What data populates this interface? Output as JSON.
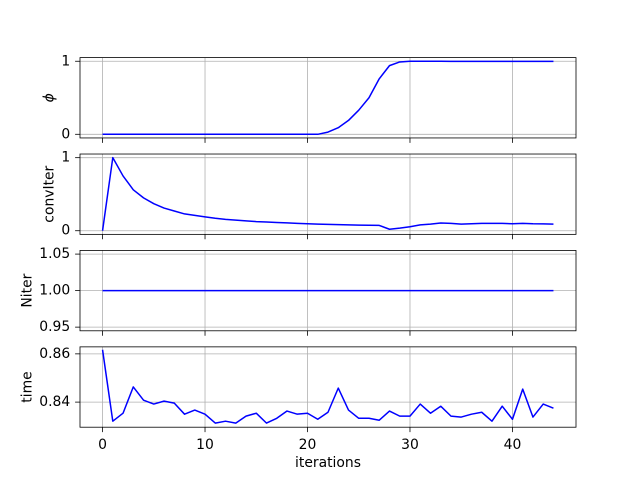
{
  "chart_data": [
    {
      "type": "line",
      "ylabel": "ϕ",
      "color": "#0000ff",
      "grid": true,
      "x": [
        0,
        1,
        2,
        3,
        4,
        5,
        6,
        7,
        8,
        9,
        10,
        11,
        12,
        13,
        14,
        15,
        16,
        17,
        18,
        19,
        20,
        21,
        22,
        23,
        24,
        25,
        26,
        27,
        28,
        29,
        30,
        31,
        32,
        33,
        34,
        35,
        36,
        37,
        38,
        39,
        40,
        41,
        42,
        43,
        44
      ],
      "values": [
        0,
        0,
        0,
        0,
        0,
        0,
        0,
        0,
        0,
        0,
        0,
        0,
        0,
        0,
        0,
        0,
        0,
        0,
        0,
        0,
        0,
        0,
        0.03,
        0.09,
        0.19,
        0.33,
        0.5,
        0.76,
        0.94,
        0.99,
        1.0,
        1.0,
        1.0,
        1.0,
        0.999,
        0.999,
        0.999,
        0.999,
        0.999,
        0.999,
        0.999,
        0.999,
        0.999,
        0.999,
        0.999
      ],
      "xlim": [
        -2.2,
        46.2
      ],
      "xticks": [
        0,
        10,
        20,
        30,
        40
      ],
      "ylim": [
        -0.05,
        1.05
      ],
      "yticks": [
        0,
        1
      ]
    },
    {
      "type": "line",
      "ylabel": "convIter",
      "color": "#0000ff",
      "grid": true,
      "x": [
        0,
        1,
        2,
        3,
        4,
        5,
        6,
        7,
        8,
        9,
        10,
        11,
        12,
        13,
        14,
        15,
        16,
        17,
        18,
        19,
        20,
        21,
        22,
        23,
        24,
        25,
        26,
        27,
        28,
        29,
        30,
        31,
        32,
        33,
        34,
        35,
        36,
        37,
        38,
        39,
        40,
        41,
        42,
        43,
        44
      ],
      "values": [
        0,
        1,
        0.75,
        0.56,
        0.45,
        0.37,
        0.31,
        0.27,
        0.23,
        0.21,
        0.19,
        0.17,
        0.155,
        0.145,
        0.135,
        0.125,
        0.12,
        0.113,
        0.107,
        0.1,
        0.095,
        0.09,
        0.087,
        0.083,
        0.08,
        0.077,
        0.075,
        0.073,
        0.02,
        0.035,
        0.055,
        0.08,
        0.09,
        0.105,
        0.1,
        0.09,
        0.095,
        0.1,
        0.1,
        0.1,
        0.095,
        0.1,
        0.095,
        0.093,
        0.09
      ],
      "xlim": [
        -2.2,
        46.2
      ],
      "xticks": [
        0,
        10,
        20,
        30,
        40
      ],
      "ylim": [
        -0.05,
        1.05
      ],
      "yticks": [
        0,
        1
      ]
    },
    {
      "type": "line",
      "ylabel": "Niter",
      "color": "#0000ff",
      "grid": true,
      "x": [
        0,
        1,
        2,
        3,
        4,
        5,
        6,
        7,
        8,
        9,
        10,
        11,
        12,
        13,
        14,
        15,
        16,
        17,
        18,
        19,
        20,
        21,
        22,
        23,
        24,
        25,
        26,
        27,
        28,
        29,
        30,
        31,
        32,
        33,
        34,
        35,
        36,
        37,
        38,
        39,
        40,
        41,
        42,
        43,
        44
      ],
      "values": [
        1,
        1,
        1,
        1,
        1,
        1,
        1,
        1,
        1,
        1,
        1,
        1,
        1,
        1,
        1,
        1,
        1,
        1,
        1,
        1,
        1,
        1,
        1,
        1,
        1,
        1,
        1,
        1,
        1,
        1,
        1,
        1,
        1,
        1,
        1,
        1,
        1,
        1,
        1,
        1,
        1,
        1,
        1,
        1,
        1
      ],
      "xlim": [
        -2.2,
        46.2
      ],
      "xticks": [
        0,
        10,
        20,
        30,
        40
      ],
      "ylim": [
        0.945,
        1.055
      ],
      "yticks": [
        0.95,
        {
          "value": 1,
          "label": "1.00"
        },
        1.05
      ]
    },
    {
      "type": "line",
      "ylabel": "time",
      "xlabel": "iterations",
      "color": "#0000ff",
      "grid": true,
      "x": [
        0,
        1,
        2,
        3,
        4,
        5,
        6,
        7,
        8,
        9,
        10,
        11,
        12,
        13,
        14,
        15,
        16,
        17,
        18,
        19,
        20,
        21,
        22,
        23,
        24,
        25,
        26,
        27,
        28,
        29,
        30,
        31,
        32,
        33,
        34,
        35,
        36,
        37,
        38,
        39,
        40,
        41,
        42,
        43,
        44
      ],
      "values": [
        0.8617,
        0.8321,
        0.8354,
        0.8463,
        0.8408,
        0.8392,
        0.8404,
        0.8396,
        0.835,
        0.8367,
        0.835,
        0.8313,
        0.8321,
        0.8313,
        0.8342,
        0.8354,
        0.8313,
        0.8333,
        0.8363,
        0.835,
        0.8354,
        0.8329,
        0.8358,
        0.8458,
        0.8367,
        0.8333,
        0.8333,
        0.8325,
        0.8363,
        0.8342,
        0.8342,
        0.8392,
        0.8354,
        0.8383,
        0.8342,
        0.8338,
        0.835,
        0.8358,
        0.8321,
        0.8383,
        0.8329,
        0.8454,
        0.8338,
        0.8392,
        0.8375
      ],
      "xlim": [
        -2.2,
        46.2
      ],
      "xticks": [
        0,
        10,
        20,
        30,
        40
      ],
      "ylim": [
        0.8296,
        0.8629
      ],
      "yticks": [
        0.84,
        0.86
      ]
    }
  ]
}
